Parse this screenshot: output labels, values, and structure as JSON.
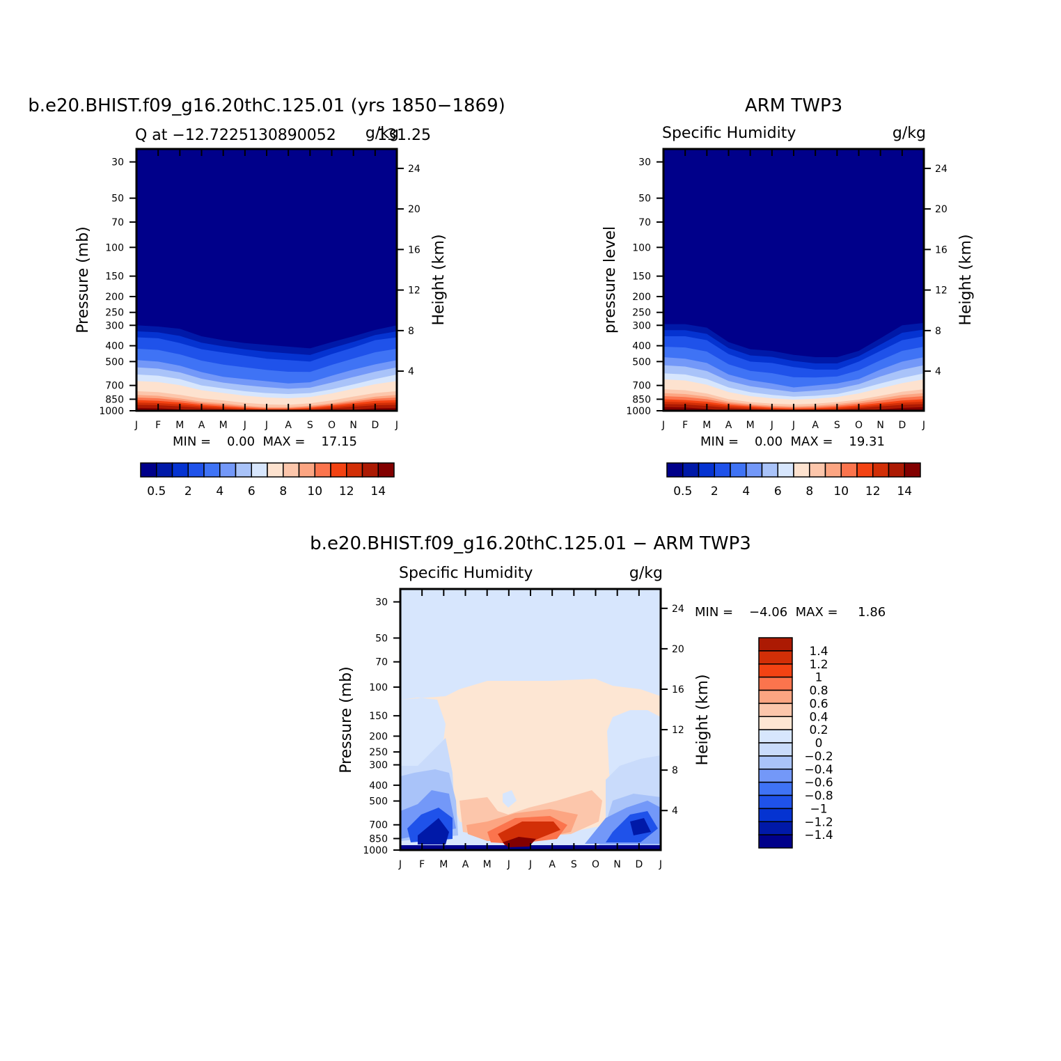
{
  "colors": {
    "q_levels": [
      "#00008a",
      "#0019a8",
      "#0533d1",
      "#1f52ea",
      "#3f73f5",
      "#7398f8",
      "#a9c3f9",
      "#d7e6fd",
      "#fde2cf",
      "#fcc6ab",
      "#fca582",
      "#fb744d",
      "#f34313",
      "#d22f07",
      "#ac1a03",
      "#820000"
    ],
    "d_levels": [
      "#00008a",
      "#0019a8",
      "#0533d1",
      "#1f52ea",
      "#3f73f5",
      "#7398f8",
      "#a9c3f9",
      "#c9dbfb",
      "#d7e6fd",
      "#fde6d3",
      "#fcc6ab",
      "#fca582",
      "#fb744d",
      "#f34313",
      "#d22f07",
      "#ac1a03",
      "#820000"
    ]
  },
  "panel1": {
    "title": "b.e20.BHIST.f09_g16.20thC.125.01 (yrs 1850−1869)",
    "left_string": "Q at −12.7225130890052",
    "right_string": "g/kg",
    "center_overlap": "131.25",
    "ylabel": "Pressure (mb)",
    "ylabel_right": "Height (km)",
    "minmax": "MIN =    0.00  MAX =    17.15",
    "lb_labels": [
      "0.5",
      "2",
      "4",
      "6",
      "8",
      "10",
      "12",
      "14"
    ]
  },
  "panel2": {
    "title": "ARM TWP3",
    "left_string": "Specific Humidity",
    "right_string": "g/kg",
    "ylabel": "pressure level",
    "ylabel_right": "Height (km)",
    "minmax": "MIN =    0.00  MAX =    19.31",
    "lb_labels": [
      "0.5",
      "2",
      "4",
      "6",
      "8",
      "10",
      "12",
      "14"
    ]
  },
  "panel3": {
    "title": "b.e20.BHIST.f09_g16.20thC.125.01 − ARM TWP3",
    "left_string": "Specific Humidity",
    "right_string": "g/kg",
    "ylabel": "Pressure (mb)",
    "ylabel_right": "Height (km)",
    "minmax": "MIN =    −4.06  MAX =     1.86",
    "lb_labels": [
      "1.4",
      "1.2",
      "1",
      "0.8",
      "0.6",
      "0.4",
      "0.2",
      "0",
      "−0.2",
      "−0.4",
      "−0.6",
      "−0.8",
      "−1",
      "−1.2",
      "−1.4"
    ]
  },
  "chart_data": [
    {
      "type": "heatmap",
      "title": "b.e20.BHIST.f09_g16.20thC.125.01 (yrs 1850−1869)",
      "variable": "Q",
      "units": "g/kg",
      "x_categories": [
        "J",
        "F",
        "M",
        "A",
        "M",
        "J",
        "J",
        "A",
        "S",
        "O",
        "N",
        "D",
        "J"
      ],
      "y_ticks_pressure": [
        30,
        50,
        70,
        100,
        150,
        200,
        250,
        300,
        400,
        500,
        700,
        850,
        1000
      ],
      "y_ticks_height": [
        4,
        8,
        12,
        16,
        20,
        24
      ],
      "xlabel": "",
      "ylabel": "Pressure (mb)",
      "ylabel_right": "Height (km)",
      "ylim": [
        1000,
        25
      ],
      "contour_levels": [
        0.5,
        1,
        2,
        3,
        4,
        5,
        6,
        7,
        8,
        9,
        10,
        11,
        12,
        13,
        14
      ],
      "contour_boundary_pressure": {
        "months": [
          "J",
          "F",
          "M",
          "A",
          "M",
          "J",
          "J",
          "A",
          "S",
          "O",
          "N",
          "D",
          "J"
        ],
        "q0.5": [
          300,
          305,
          315,
          350,
          370,
          385,
          395,
          405,
          415,
          380,
          350,
          320,
          300
        ],
        "q2": [
          355,
          360,
          385,
          420,
          440,
          460,
          480,
          490,
          500,
          450,
          410,
          370,
          355
        ],
        "q4": [
          490,
          500,
          530,
          580,
          620,
          640,
          660,
          680,
          670,
          610,
          560,
          520,
          490
        ],
        "q6": [
          600,
          610,
          640,
          700,
          730,
          760,
          780,
          790,
          780,
          740,
          690,
          640,
          600
        ],
        "q8": [
          720,
          730,
          760,
          800,
          830,
          860,
          880,
          890,
          870,
          830,
          780,
          740,
          720
        ],
        "q10": [
          800,
          810,
          840,
          880,
          900,
          930,
          950,
          950,
          930,
          900,
          860,
          820,
          800
        ],
        "q12": [
          860,
          870,
          890,
          920,
          940,
          960,
          975,
          975,
          960,
          930,
          900,
          870,
          860
        ],
        "q14": [
          920,
          925,
          940,
          960,
          975,
          990,
          1000,
          1000,
          990,
          970,
          945,
          925,
          920
        ]
      },
      "min": 0.0,
      "max": 17.15
    },
    {
      "type": "heatmap",
      "title": "ARM TWP3",
      "variable": "Specific Humidity",
      "units": "g/kg",
      "x_categories": [
        "J",
        "F",
        "M",
        "A",
        "M",
        "J",
        "J",
        "A",
        "S",
        "O",
        "N",
        "D",
        "J"
      ],
      "y_ticks_pressure": [
        30,
        50,
        70,
        100,
        150,
        200,
        250,
        300,
        400,
        500,
        700,
        850,
        1000
      ],
      "y_ticks_height": [
        4,
        8,
        12,
        16,
        20,
        24
      ],
      "xlabel": "",
      "ylabel": "pressure level",
      "ylabel_right": "Height (km)",
      "ylim": [
        1000,
        25
      ],
      "contour_levels": [
        0.5,
        1,
        2,
        3,
        4,
        5,
        6,
        7,
        8,
        9,
        10,
        11,
        12,
        13,
        14
      ],
      "contour_boundary_pressure": {
        "months": [
          "J",
          "F",
          "M",
          "A",
          "M",
          "J",
          "J",
          "A",
          "S",
          "O",
          "N",
          "D",
          "J"
        ],
        "q0.5": [
          295,
          295,
          310,
          380,
          420,
          430,
          455,
          470,
          470,
          430,
          360,
          300,
          290
        ],
        "q2": [
          350,
          350,
          370,
          450,
          500,
          510,
          540,
          560,
          560,
          500,
          430,
          370,
          350
        ],
        "q4": [
          470,
          480,
          510,
          600,
          650,
          680,
          720,
          700,
          680,
          640,
          560,
          500,
          470
        ],
        "q6": [
          590,
          600,
          640,
          720,
          770,
          800,
          820,
          810,
          790,
          740,
          680,
          630,
          590
        ],
        "q8": [
          700,
          710,
          750,
          820,
          860,
          880,
          890,
          880,
          860,
          830,
          780,
          730,
          700
        ],
        "q10": [
          780,
          790,
          820,
          880,
          910,
          930,
          940,
          930,
          910,
          880,
          840,
          800,
          780
        ],
        "q12": [
          850,
          860,
          880,
          920,
          940,
          960,
          970,
          965,
          950,
          925,
          895,
          865,
          850
        ],
        "q14": [
          910,
          915,
          935,
          960,
          975,
          990,
          1000,
          995,
          985,
          965,
          940,
          920,
          910
        ]
      },
      "min": 0.0,
      "max": 19.31
    },
    {
      "type": "heatmap",
      "title": "b.e20.BHIST.f09_g16.20thC.125.01 − ARM TWP3",
      "variable": "Specific Humidity",
      "units": "g/kg",
      "x_categories": [
        "J",
        "F",
        "M",
        "A",
        "M",
        "J",
        "J",
        "A",
        "S",
        "O",
        "N",
        "D",
        "J"
      ],
      "y_ticks_pressure": [
        30,
        50,
        70,
        100,
        150,
        200,
        250,
        300,
        400,
        500,
        700,
        850,
        1000
      ],
      "y_ticks_height": [
        4,
        8,
        12,
        16,
        20,
        24
      ],
      "xlabel": "",
      "ylabel": "Pressure (mb)",
      "ylabel_right": "Height (km)",
      "ylim": [
        1000,
        25
      ],
      "contour_levels": [
        -1.4,
        -1.2,
        -1,
        -0.8,
        -0.6,
        -0.4,
        -0.2,
        0,
        0.2,
        0.4,
        0.6,
        0.8,
        1,
        1.2,
        1.4
      ],
      "min": -4.06,
      "max": 1.86
    }
  ]
}
